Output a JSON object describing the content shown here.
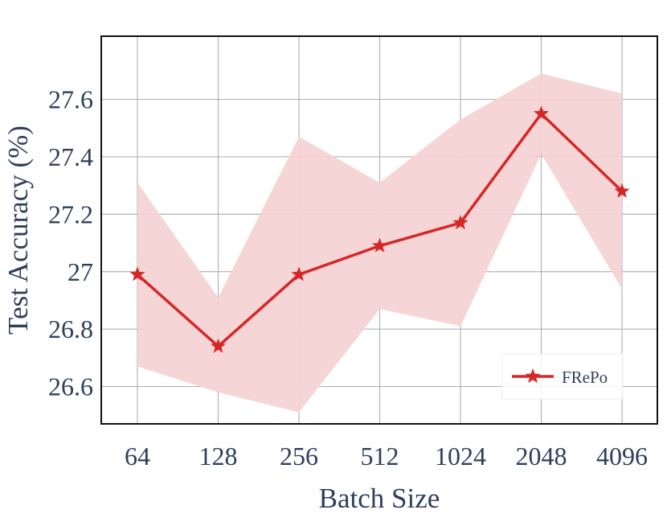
{
  "chart_data": {
    "type": "line",
    "title": "",
    "xlabel": "Batch Size",
    "ylabel": "Test Accuracy (%)",
    "categories": [
      "64",
      "128",
      "256",
      "512",
      "1024",
      "2048",
      "4096"
    ],
    "yticks": [
      26.6,
      26.8,
      27.0,
      27.2,
      27.4,
      27.6
    ],
    "ytick_labels": [
      "26.6",
      "26.8",
      "27",
      "27.2",
      "27.4",
      "27.6"
    ],
    "ylim": [
      26.47,
      27.82
    ],
    "grid": true,
    "legend_position": "bottom-right",
    "series": [
      {
        "name": "FRePo",
        "marker": "star",
        "color": "#d62728",
        "band_color": "#f5d3d4",
        "values": [
          26.99,
          26.74,
          26.99,
          27.09,
          27.17,
          27.55,
          27.28
        ],
        "band_upper": [
          27.31,
          26.91,
          27.47,
          27.31,
          27.53,
          27.69,
          27.62
        ],
        "band_lower": [
          26.67,
          26.58,
          26.51,
          26.87,
          26.81,
          27.41,
          26.94
        ]
      }
    ]
  }
}
